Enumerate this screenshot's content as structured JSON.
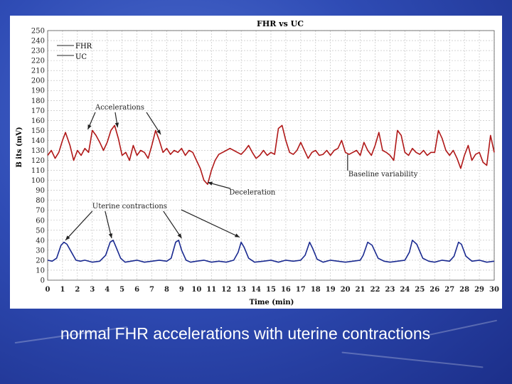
{
  "slide": {
    "caption": "normal FHR accelerations with uterine contractions"
  },
  "colors": {
    "fhr": "#b01818",
    "uc": "#1a2a90",
    "grid": "#bbbbbb",
    "annotation": "#222222"
  },
  "chart_data": {
    "type": "line",
    "title": "FHR vs UC",
    "xlabel": "Time (min)",
    "ylabel": "B its (mV)",
    "xlim": [
      0,
      30
    ],
    "ylim": [
      0,
      250
    ],
    "grid": true,
    "legend_position": "top-left",
    "x_ticks": [
      "0",
      "1",
      "2",
      "3",
      "4",
      "5",
      "6",
      "7",
      "8",
      "9",
      "10",
      "11",
      "12",
      "13",
      "14",
      "15",
      "16",
      "17",
      "18",
      "19",
      "20",
      "21",
      "22",
      "23",
      "24",
      "25",
      "26",
      "27",
      "28",
      "29",
      "30"
    ],
    "y_ticks": [
      "0",
      "10",
      "20",
      "30",
      "40",
      "50",
      "60",
      "70",
      "80",
      "90",
      "100",
      "110",
      "120",
      "130",
      "140",
      "150",
      "160",
      "170",
      "180",
      "190",
      "200",
      "210",
      "220",
      "230",
      "240",
      "250"
    ],
    "series": [
      {
        "name": "FHR",
        "x": [
          0,
          0.25,
          0.5,
          0.75,
          1,
          1.2,
          1.5,
          1.75,
          2,
          2.25,
          2.5,
          2.75,
          3,
          3.25,
          3.5,
          3.75,
          4,
          4.25,
          4.5,
          4.75,
          5,
          5.25,
          5.5,
          5.75,
          6,
          6.25,
          6.5,
          6.75,
          7,
          7.25,
          7.5,
          7.75,
          8,
          8.25,
          8.5,
          8.75,
          9,
          9.25,
          9.5,
          9.75,
          10,
          10.25,
          10.5,
          10.75,
          11,
          11.25,
          11.5,
          11.75,
          12,
          12.25,
          12.5,
          12.75,
          13,
          13.25,
          13.5,
          13.75,
          14,
          14.25,
          14.5,
          14.75,
          15,
          15.25,
          15.5,
          15.75,
          16,
          16.25,
          16.5,
          16.75,
          17,
          17.25,
          17.5,
          17.75,
          18,
          18.25,
          18.5,
          18.75,
          19,
          19.25,
          19.5,
          19.75,
          20,
          20.25,
          20.5,
          20.75,
          21,
          21.25,
          21.5,
          21.75,
          22,
          22.25,
          22.5,
          22.75,
          23,
          23.25,
          23.5,
          23.75,
          24,
          24.25,
          24.5,
          24.75,
          25,
          25.25,
          25.5,
          25.75,
          26,
          26.25,
          26.5,
          26.75,
          27,
          27.25,
          27.5,
          27.75,
          28,
          28.25,
          28.5,
          28.75,
          29,
          29.25,
          29.5,
          29.75,
          30
        ],
        "values": [
          125,
          130,
          122,
          128,
          140,
          148,
          135,
          120,
          130,
          125,
          132,
          128,
          150,
          145,
          138,
          130,
          138,
          150,
          155,
          142,
          125,
          128,
          120,
          135,
          125,
          130,
          128,
          122,
          135,
          150,
          140,
          128,
          132,
          126,
          130,
          128,
          132,
          125,
          130,
          128,
          120,
          112,
          100,
          96,
          110,
          120,
          126,
          128,
          130,
          132,
          130,
          128,
          126,
          130,
          135,
          128,
          122,
          125,
          130,
          125,
          128,
          126,
          152,
          155,
          140,
          128,
          126,
          130,
          138,
          130,
          122,
          128,
          130,
          125,
          126,
          130,
          125,
          130,
          132,
          140,
          128,
          126,
          128,
          130,
          125,
          138,
          130,
          125,
          135,
          148,
          130,
          128,
          125,
          120,
          150,
          145,
          128,
          125,
          132,
          128,
          126,
          130,
          125,
          128,
          128,
          150,
          142,
          130,
          125,
          130,
          122,
          112,
          125,
          135,
          120,
          126,
          128,
          118,
          115,
          145,
          128
        ]
      },
      {
        "name": "UC",
        "x": [
          0,
          0.3,
          0.6,
          0.9,
          1.1,
          1.3,
          1.6,
          1.9,
          2.2,
          2.5,
          3,
          3.5,
          3.9,
          4.2,
          4.4,
          4.6,
          4.9,
          5.2,
          5.6,
          6,
          6.5,
          7,
          7.5,
          8,
          8.3,
          8.6,
          8.8,
          9,
          9.3,
          9.6,
          10,
          10.5,
          11,
          11.5,
          12,
          12.5,
          12.8,
          13,
          13.2,
          13.5,
          13.9,
          14.5,
          15,
          15.5,
          16,
          16.5,
          17,
          17.3,
          17.6,
          17.8,
          18.1,
          18.5,
          19,
          19.5,
          20,
          20.5,
          21,
          21.2,
          21.5,
          21.8,
          22.2,
          22.6,
          23,
          23.5,
          24,
          24.3,
          24.5,
          24.8,
          25.2,
          25.6,
          26,
          26.5,
          27,
          27.3,
          27.6,
          27.8,
          28.1,
          28.5,
          29,
          29.5,
          30
        ],
        "values": [
          20,
          19,
          22,
          35,
          38,
          36,
          28,
          20,
          19,
          20,
          18,
          19,
          25,
          38,
          40,
          33,
          22,
          18,
          19,
          20,
          18,
          19,
          20,
          19,
          22,
          38,
          40,
          30,
          20,
          18,
          19,
          20,
          18,
          19,
          18,
          20,
          28,
          38,
          33,
          22,
          18,
          19,
          20,
          18,
          20,
          19,
          20,
          25,
          38,
          32,
          21,
          18,
          20,
          19,
          18,
          19,
          20,
          25,
          38,
          35,
          22,
          19,
          18,
          19,
          20,
          28,
          40,
          36,
          22,
          19,
          18,
          20,
          19,
          24,
          38,
          36,
          24,
          19,
          20,
          18,
          19
        ]
      }
    ],
    "annotations": [
      {
        "id": "accelerations",
        "text": "Accelerations",
        "x": 3.2,
        "y": 171
      },
      {
        "id": "deceleration",
        "text": "Deceleration",
        "x": 12.2,
        "y": 86
      },
      {
        "id": "baseline",
        "text": "Baseline variability",
        "x": 20.2,
        "y": 104
      },
      {
        "id": "uterine",
        "text": "Uterine contractions",
        "x": 3.0,
        "y": 72
      }
    ]
  }
}
